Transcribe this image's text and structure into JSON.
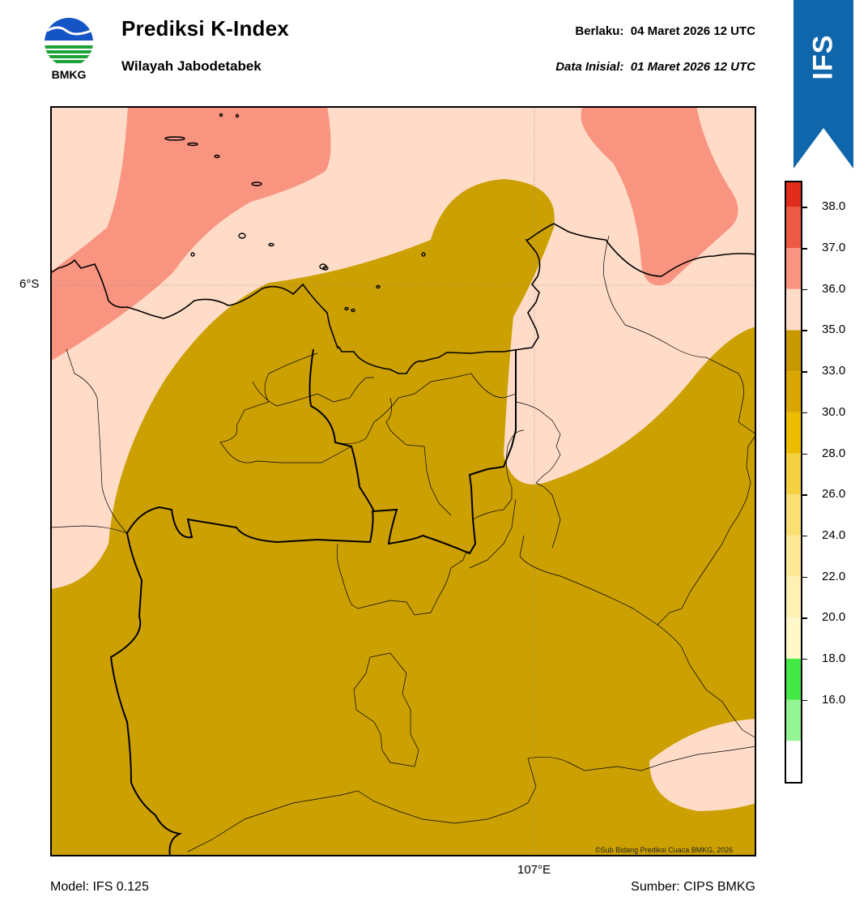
{
  "header": {
    "logo_text": "BMKG",
    "title": "Prediksi K-Index",
    "subtitle": "Wilayah Jabodetabek",
    "valid_label": "Berlaku:",
    "valid_time": "04 Maret 2026 12 UTC",
    "init_label": "Data Inisial:",
    "init_time": "01 Maret 2026 12 UTC"
  },
  "ribbon": {
    "text": "IFS",
    "color": "#0f66ab"
  },
  "map": {
    "lat_label": "6°S",
    "lon_label": "107°E",
    "credit": "©Sub Bidang Prediksi Cuaca BMKG, 2026",
    "colors": {
      "field_30_33": "#cca000",
      "field_35_36": "#ffdcc8",
      "field_36_37": "#f99480"
    }
  },
  "colorbar": {
    "ticks": [
      "38.0",
      "37.0",
      "36.0",
      "35.0",
      "33.0",
      "30.0",
      "28.0",
      "26.0",
      "24.0",
      "22.0",
      "20.0",
      "18.0",
      "16.0"
    ],
    "segments": [
      "#e12d1c",
      "#ee5a44",
      "#f99480",
      "#ffdcc8",
      "#c89800",
      "#d9a500",
      "#edbc00",
      "#f5d040",
      "#fbdf72",
      "#fde996",
      "#fff1b3",
      "#fff8c8",
      "#44e844",
      "#92f492",
      "#ffffff"
    ]
  },
  "footer": {
    "model": "Model: IFS 0.125",
    "source": "Sumber: CIPS BMKG"
  }
}
